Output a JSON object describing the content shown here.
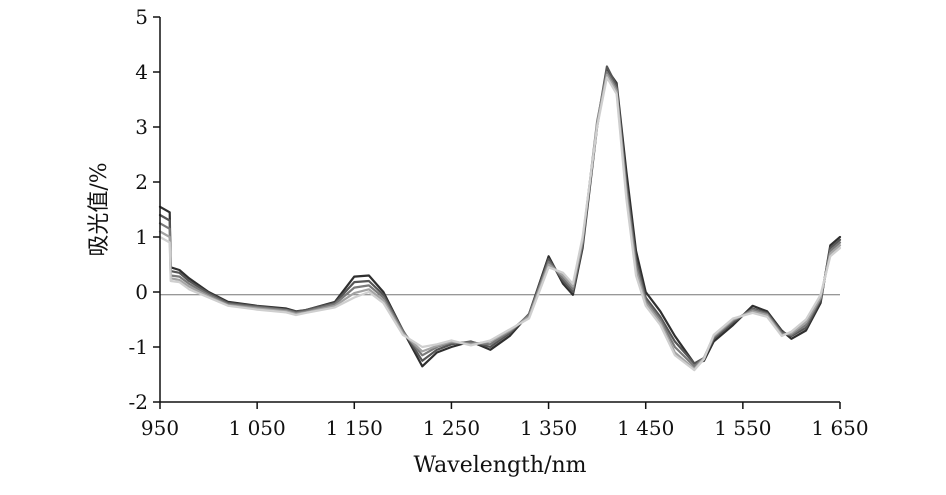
{
  "chart_data": {
    "type": "line",
    "title": "",
    "xlabel": "Wavelength/nm",
    "ylabel": "吸光值/%",
    "xlim": [
      950,
      1650
    ],
    "ylim": [
      -2,
      5
    ],
    "x_ticks": [
      950,
      1050,
      1150,
      1250,
      1350,
      1450,
      1550,
      1650
    ],
    "x_tick_labels": [
      "950",
      "1 050",
      "1 150",
      "1 250",
      "1 350",
      "1 450",
      "1 550",
      "1 650"
    ],
    "y_ticks": [
      -2,
      -1,
      0,
      1,
      2,
      3,
      4,
      5
    ],
    "y_tick_labels": [
      "-2",
      "-1",
      "0",
      "1",
      "2",
      "3",
      "4",
      "5"
    ],
    "zero_line": -0.05,
    "grid": false,
    "legend": "none",
    "x": [
      950,
      960,
      961,
      970,
      980,
      1000,
      1020,
      1050,
      1080,
      1090,
      1100,
      1130,
      1150,
      1165,
      1180,
      1200,
      1220,
      1235,
      1250,
      1270,
      1290,
      1310,
      1330,
      1350,
      1365,
      1375,
      1385,
      1400,
      1410,
      1420,
      1430,
      1440,
      1450,
      1465,
      1480,
      1500,
      1510,
      1520,
      1540,
      1560,
      1575,
      1590,
      1600,
      1615,
      1630,
      1640,
      1650
    ],
    "series": [
      {
        "values": [
          1.55,
          1.45,
          0.45,
          0.4,
          0.25,
          0.0,
          -0.18,
          -0.25,
          -0.3,
          -0.35,
          -0.33,
          -0.18,
          0.28,
          0.3,
          0.0,
          -0.7,
          -1.35,
          -1.1,
          -1.0,
          -0.9,
          -1.05,
          -0.8,
          -0.4,
          0.65,
          0.15,
          -0.05,
          0.8,
          3.0,
          4.05,
          3.8,
          2.2,
          0.75,
          0.0,
          -0.35,
          -0.8,
          -1.3,
          -1.25,
          -0.9,
          -0.6,
          -0.25,
          -0.35,
          -0.7,
          -0.85,
          -0.7,
          -0.2,
          0.85,
          1.0
        ],
        "color": "#2f2f2f"
      },
      {
        "values": [
          1.4,
          1.3,
          0.38,
          0.35,
          0.2,
          -0.02,
          -0.2,
          -0.26,
          -0.32,
          -0.36,
          -0.33,
          -0.2,
          0.18,
          0.2,
          -0.05,
          -0.7,
          -1.25,
          -1.05,
          -0.95,
          -0.9,
          -1.0,
          -0.75,
          -0.4,
          0.6,
          0.2,
          0.0,
          0.85,
          3.05,
          4.1,
          3.75,
          2.0,
          0.6,
          -0.1,
          -0.45,
          -0.9,
          -1.3,
          -1.2,
          -0.85,
          -0.55,
          -0.3,
          -0.38,
          -0.72,
          -0.8,
          -0.65,
          -0.15,
          0.8,
          0.95
        ],
        "color": "#555555"
      },
      {
        "values": [
          1.25,
          1.15,
          0.3,
          0.28,
          0.15,
          -0.05,
          -0.22,
          -0.28,
          -0.33,
          -0.38,
          -0.35,
          -0.22,
          0.08,
          0.12,
          -0.1,
          -0.72,
          -1.15,
          -1.0,
          -0.92,
          -0.92,
          -0.95,
          -0.72,
          -0.42,
          0.55,
          0.25,
          0.05,
          0.9,
          3.1,
          4.0,
          3.7,
          1.9,
          0.5,
          -0.15,
          -0.5,
          -1.0,
          -1.35,
          -1.2,
          -0.82,
          -0.52,
          -0.32,
          -0.4,
          -0.75,
          -0.78,
          -0.6,
          -0.12,
          0.75,
          0.9
        ],
        "color": "#7a7a7a"
      },
      {
        "values": [
          1.1,
          1.0,
          0.25,
          0.22,
          0.1,
          -0.08,
          -0.24,
          -0.3,
          -0.35,
          -0.4,
          -0.37,
          -0.25,
          -0.02,
          0.05,
          -0.15,
          -0.75,
          -1.08,
          -0.98,
          -0.9,
          -0.95,
          -0.9,
          -0.7,
          -0.45,
          0.5,
          0.3,
          0.1,
          0.95,
          3.05,
          3.95,
          3.65,
          1.8,
          0.4,
          -0.2,
          -0.55,
          -1.1,
          -1.4,
          -1.2,
          -0.8,
          -0.5,
          -0.35,
          -0.42,
          -0.78,
          -0.75,
          -0.55,
          -0.1,
          0.7,
          0.85
        ],
        "color": "#a3a3a3"
      },
      {
        "values": [
          1.0,
          0.9,
          0.2,
          0.18,
          0.05,
          -0.1,
          -0.25,
          -0.32,
          -0.37,
          -0.42,
          -0.38,
          -0.28,
          -0.1,
          0.0,
          -0.2,
          -0.78,
          -1.0,
          -0.95,
          -0.88,
          -0.97,
          -0.88,
          -0.68,
          -0.48,
          0.45,
          0.35,
          0.15,
          1.0,
          3.0,
          3.9,
          3.6,
          1.7,
          0.3,
          -0.25,
          -0.6,
          -1.15,
          -1.42,
          -1.22,
          -0.78,
          -0.48,
          -0.38,
          -0.45,
          -0.8,
          -0.72,
          -0.5,
          -0.05,
          0.65,
          0.8
        ],
        "color": "#cfcfcf"
      }
    ]
  }
}
